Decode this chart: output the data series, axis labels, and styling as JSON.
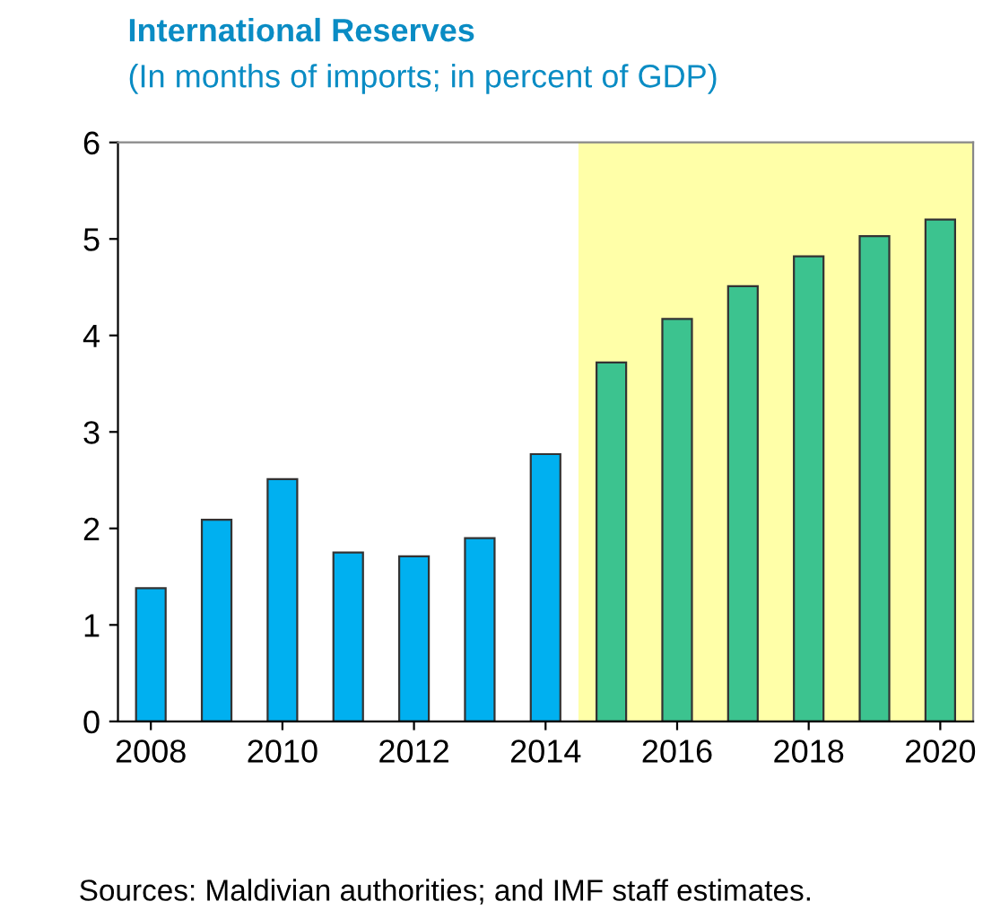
{
  "chart_data": {
    "type": "bar",
    "title": "International Reserves",
    "subtitle": "(In months of imports; in percent of GDP)",
    "x": [
      2008,
      2009,
      2010,
      2011,
      2012,
      2013,
      2014,
      2015,
      2016,
      2017,
      2018,
      2019,
      2020
    ],
    "values": [
      1.38,
      2.09,
      2.51,
      1.75,
      1.71,
      1.9,
      2.77,
      3.72,
      4.17,
      4.51,
      4.82,
      5.03,
      5.2
    ],
    "colors": [
      "#00b0f0",
      "#00b0f0",
      "#00b0f0",
      "#00b0f0",
      "#00b0f0",
      "#00b0f0",
      "#00b0f0",
      "#3cc38f",
      "#3cc38f",
      "#3cc38f",
      "#3cc38f",
      "#3cc38f",
      "#3cc38f"
    ],
    "xlim": [
      2007.5,
      2020.5
    ],
    "xticks": [
      2008,
      2010,
      2012,
      2014,
      2016,
      2018,
      2020
    ],
    "ylim": [
      0,
      6
    ],
    "yticks": [
      0,
      1,
      2,
      3,
      4,
      5,
      6
    ],
    "bands": [
      {
        "axis": "x",
        "from": 2014.5,
        "to": 2020.5,
        "color": "#ffffa8"
      }
    ],
    "annotations": [
      "Sources: Maldivian authorities; and IMF staff estimates."
    ],
    "grid": false,
    "legend": false
  }
}
